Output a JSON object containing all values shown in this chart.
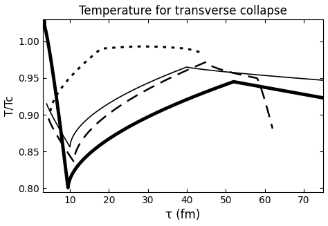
{
  "title": "Temperature for transverse collapse",
  "xlabel": "τ (fm)",
  "ylabel": "T/Tc",
  "xlim": [
    3,
    75
  ],
  "ylim": [
    0.795,
    1.03
  ],
  "yticks": [
    0.8,
    0.85,
    0.9,
    0.95,
    1.0
  ],
  "xticks": [
    10,
    20,
    30,
    40,
    50,
    60,
    70
  ],
  "curves": {
    "thick_solid": {
      "linewidth": 3.5,
      "linestyle": "solid",
      "color": "black"
    },
    "thin_solid": {
      "linewidth": 1.2,
      "linestyle": "solid",
      "color": "black"
    },
    "dashed": {
      "linewidth": 1.8,
      "linestyle": "dashed",
      "color": "black"
    },
    "dotted": {
      "linewidth": 2.2,
      "linestyle": "dotted",
      "color": "black"
    }
  }
}
